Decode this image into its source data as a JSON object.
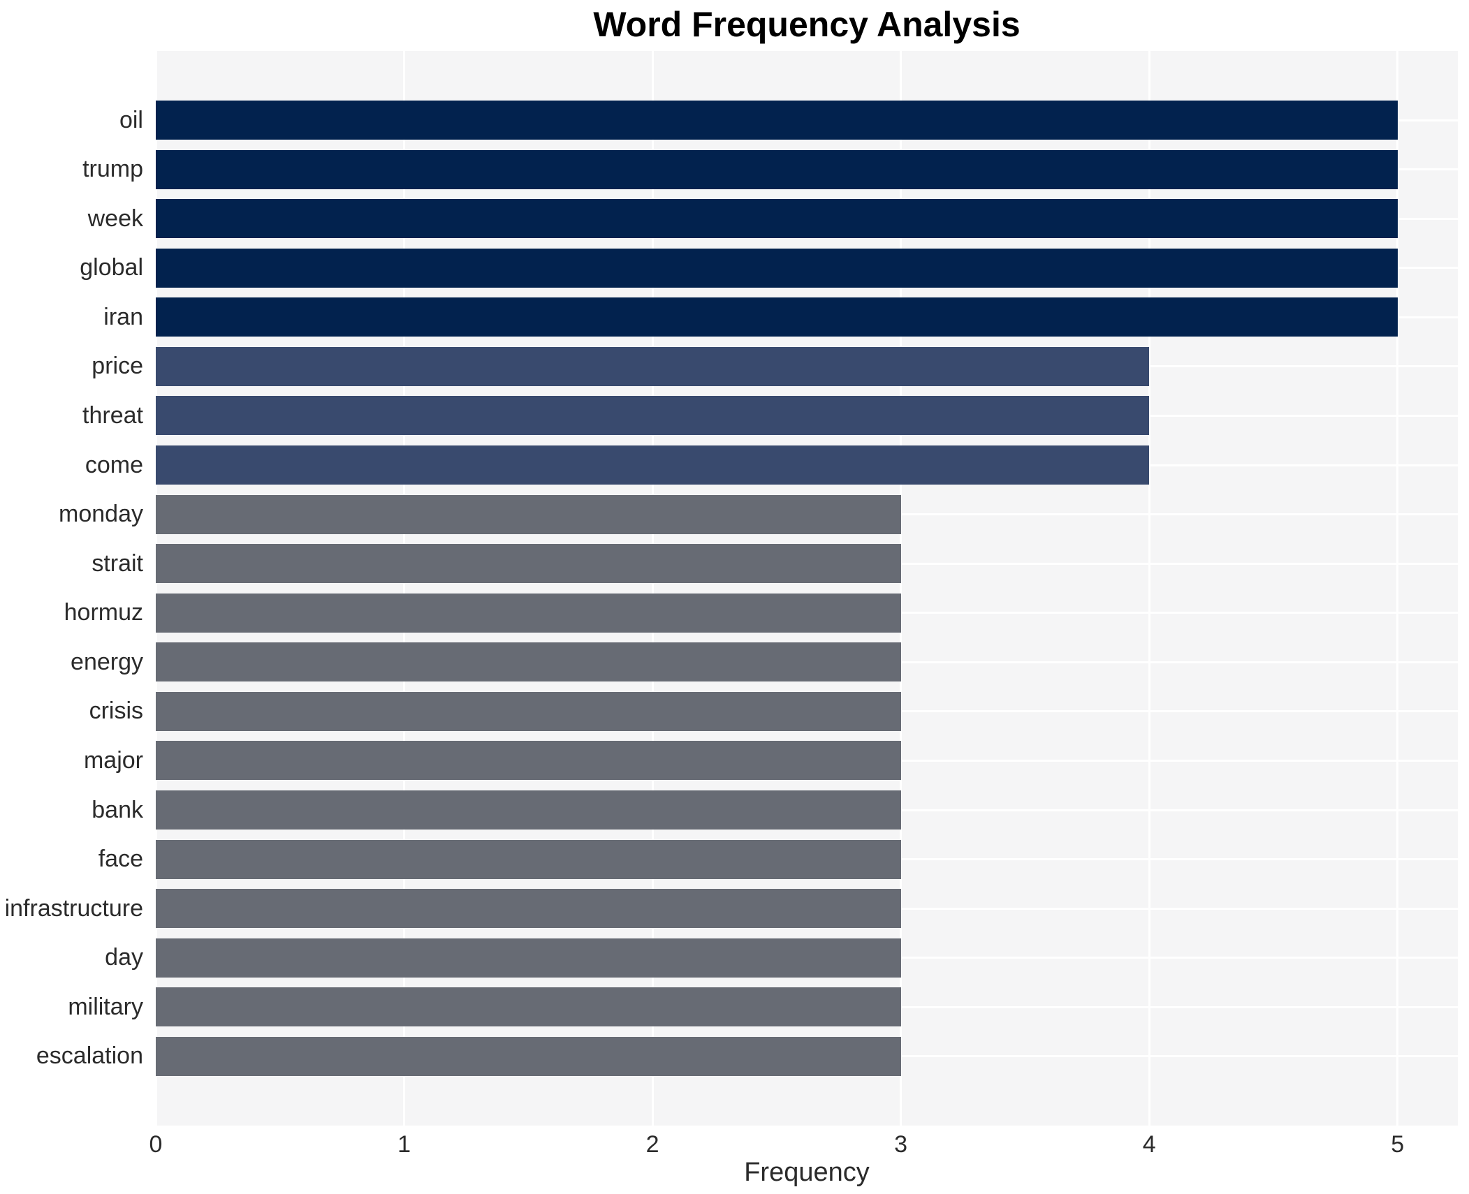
{
  "chart_data": {
    "type": "bar",
    "orientation": "horizontal",
    "title": "Word Frequency Analysis",
    "xlabel": "Frequency",
    "ylabel": "",
    "categories": [
      "oil",
      "trump",
      "week",
      "global",
      "iran",
      "price",
      "threat",
      "come",
      "monday",
      "strait",
      "hormuz",
      "energy",
      "crisis",
      "major",
      "bank",
      "face",
      "infrastructure",
      "day",
      "military",
      "escalation"
    ],
    "values": [
      5,
      5,
      5,
      5,
      5,
      4,
      4,
      4,
      3,
      3,
      3,
      3,
      3,
      3,
      3,
      3,
      3,
      3,
      3,
      3
    ],
    "xticks": [
      0,
      1,
      2,
      3,
      4,
      5
    ],
    "xlim": [
      0,
      5.25
    ],
    "grid": true,
    "legend": null,
    "colors": {
      "value_5": "#02224e",
      "value_4": "#394a6e",
      "value_3": "#676b74",
      "plot_background": "#f5f5f6",
      "grid_line": "#ffffff",
      "label_text": "#2b2b2b",
      "title_text": "#000000"
    }
  }
}
